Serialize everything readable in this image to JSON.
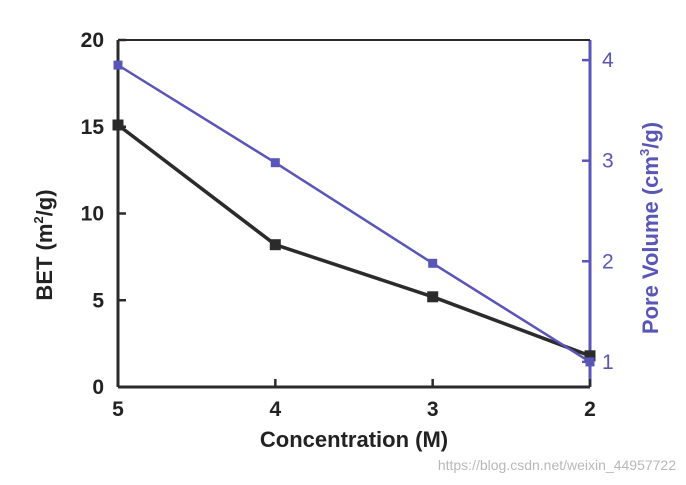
{
  "chart_data": {
    "type": "line",
    "x": [
      5,
      4,
      3,
      2
    ],
    "xlim": [
      5,
      2
    ],
    "x_reversed": true,
    "xticks": [
      "5",
      "4",
      "3",
      "2"
    ],
    "xlabel": "Concentration (M)",
    "y_left": {
      "label_prefix": "BET (m",
      "label_sup": "2",
      "label_suffix": "/g)",
      "ylim": [
        0,
        20
      ],
      "ticks": [
        "0",
        "5",
        "10",
        "15",
        "20"
      ]
    },
    "y_right": {
      "label_prefix": "Pore Volume (cm",
      "label_sup": "3",
      "label_suffix": "/g)",
      "ylim": [
        0.75,
        4.2
      ],
      "ticks": [
        "1",
        "2",
        "3",
        "4"
      ]
    },
    "series": [
      {
        "axis": "left",
        "values": [
          15.1,
          8.2,
          5.2,
          1.8
        ],
        "color": "#2b2b2b",
        "marker": "square"
      },
      {
        "axis": "right",
        "values": [
          3.95,
          2.98,
          1.98,
          1.0
        ],
        "color": "#5a56b8",
        "marker": "square"
      }
    ],
    "grid": false,
    "legend": "none"
  },
  "watermark": "https://blog.csdn.net/weixin_44957722"
}
